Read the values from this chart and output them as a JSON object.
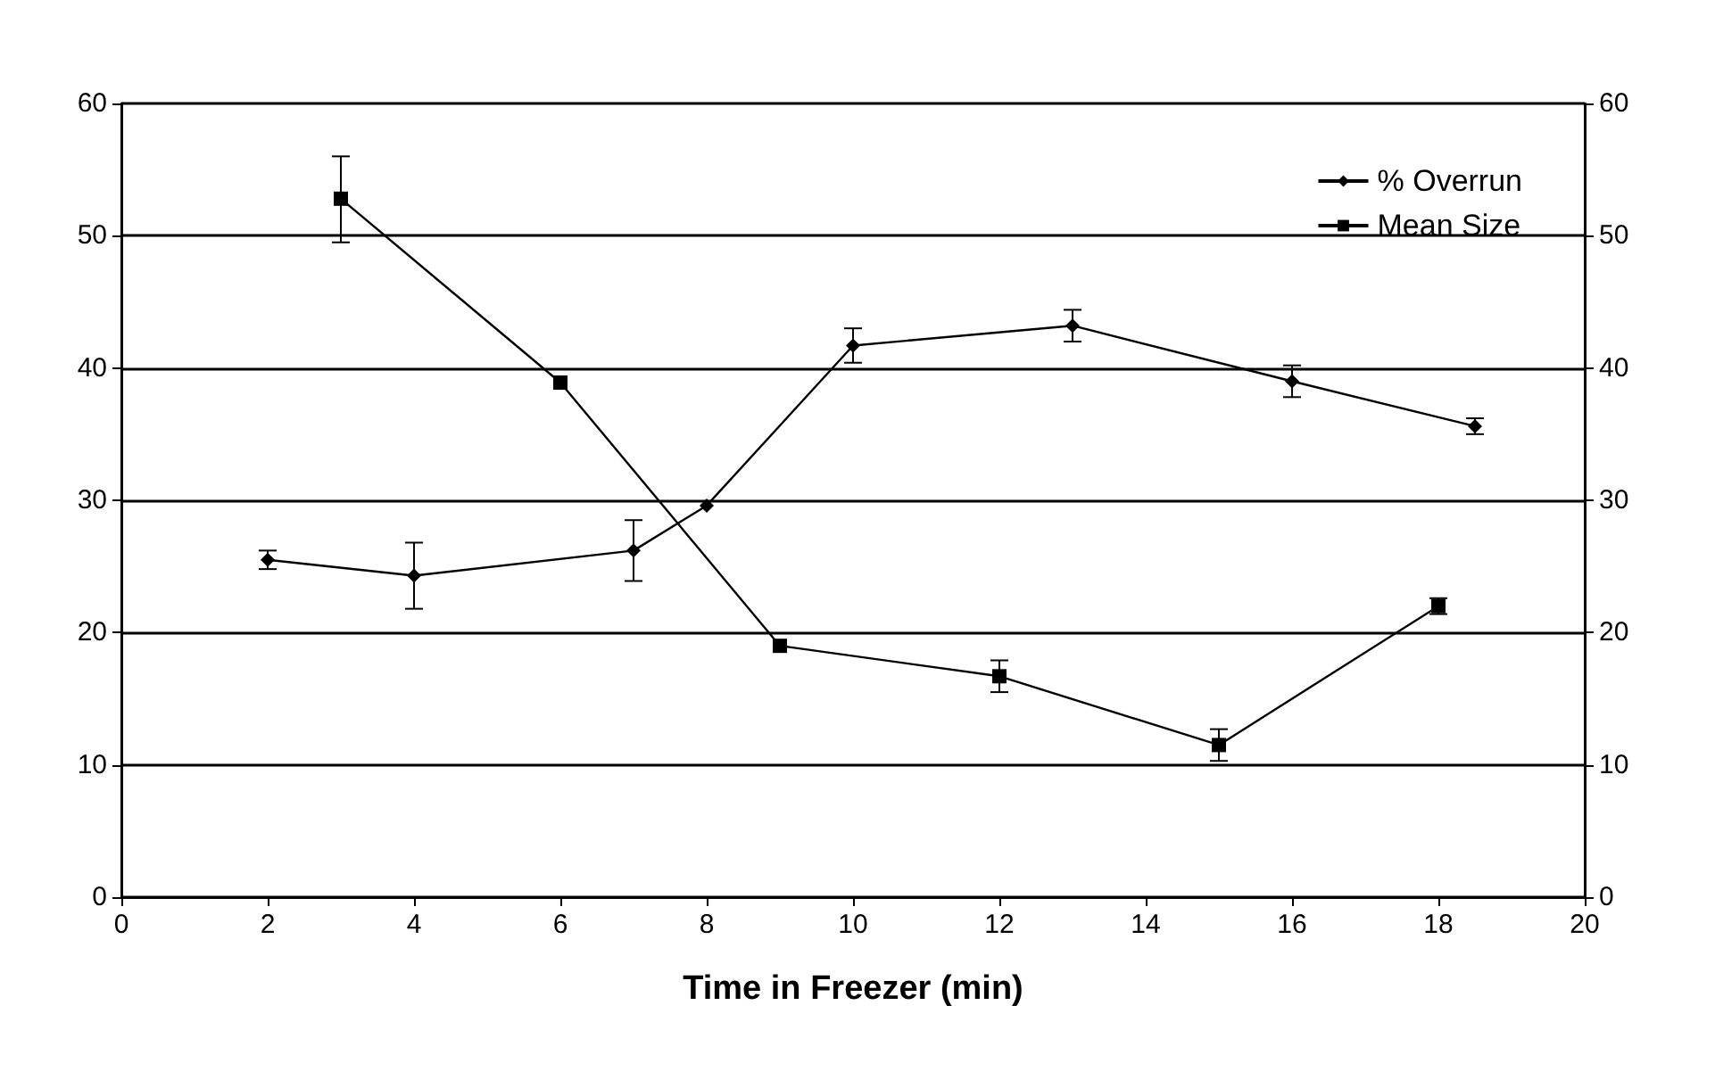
{
  "chart_data": {
    "type": "line",
    "xlabel": "Time in Freezer (min)",
    "xlim": [
      0,
      20
    ],
    "xticks": [
      0,
      2,
      4,
      6,
      8,
      10,
      12,
      14,
      16,
      18,
      20
    ],
    "ylim": [
      0,
      60
    ],
    "yticks": [
      0,
      10,
      20,
      30,
      40,
      50,
      60
    ],
    "y2lim": [
      0,
      60
    ],
    "y2ticks": [
      0,
      10,
      20,
      30,
      40,
      50,
      60
    ],
    "grid": "y",
    "legend": "top right",
    "line_style": "solid",
    "series": [
      {
        "name": "% Overrun",
        "color": "#000000",
        "marker": "diamond",
        "x": [
          2,
          4,
          7,
          8,
          10,
          13,
          16,
          18.5
        ],
        "values": [
          25.5,
          24.3,
          26.2,
          29.6,
          41.7,
          43.2,
          39,
          35.6
        ],
        "errors": [
          0.7,
          2.5,
          2.3,
          null,
          1.3,
          1.2,
          1.2,
          0.6
        ]
      },
      {
        "name": "Mean Size",
        "color": "#000000",
        "marker": "square",
        "x": [
          3,
          6,
          9,
          12,
          15,
          18
        ],
        "values": [
          52.8,
          38.9,
          19,
          16.7,
          11.5,
          22
        ],
        "errors": [
          [
            49.5,
            56
          ],
          null,
          null,
          1.2,
          1.2,
          0.6
        ]
      }
    ]
  }
}
